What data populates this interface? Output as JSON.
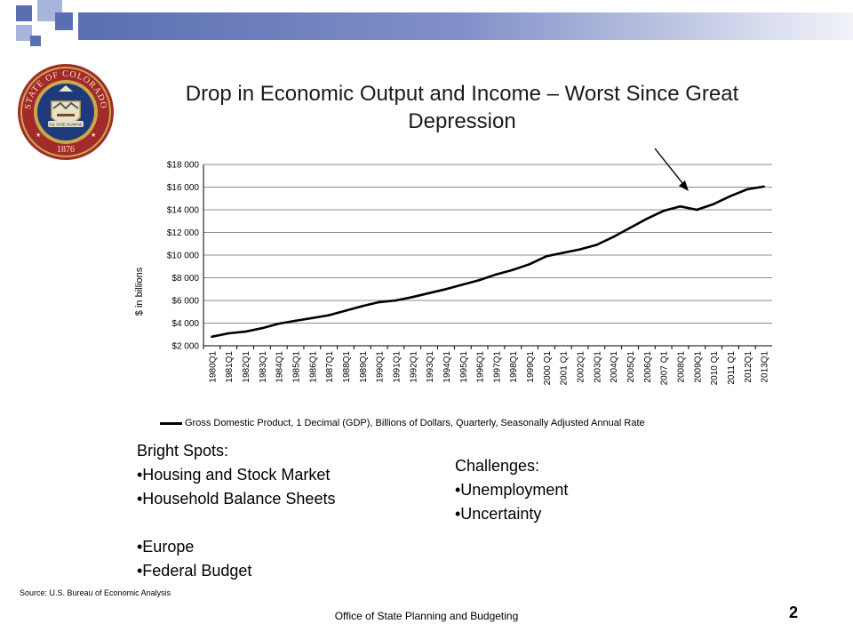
{
  "header": {
    "title": "Drop in Economic Output and Income – Worst Since Great Depression",
    "colors": {
      "primary": "#5a6fb0",
      "secondary": "#a9b4dd",
      "bar_gradient_end": "#f2f3f9"
    }
  },
  "seal": {
    "icon": "state-of-colorado-seal-icon",
    "top_text": "STATE OF COLORADO",
    "year": "1876",
    "motto": "NIL SINE NUMINE",
    "colors": {
      "outer": "#a32a2a",
      "ring": "#c9a84c",
      "center": "#1f3a7a"
    }
  },
  "chart_data": {
    "type": "line",
    "ylabel": "$ in billions",
    "xlabel": "",
    "ylim": [
      2000,
      18000
    ],
    "yticks": [
      2000,
      4000,
      6000,
      8000,
      10000,
      12000,
      14000,
      16000,
      18000
    ],
    "ytick_labels": [
      "$2 000",
      "$4 000",
      "$6 000",
      "$8 000",
      "$10 000",
      "$12 000",
      "$14 000",
      "$16 000",
      "$18 000"
    ],
    "categories": [
      "1980Q1",
      "1981Q1",
      "1982Q1",
      "1983Q1",
      "1984Q1",
      "1985Q1",
      "1986Q1",
      "1987Q1",
      "1988Q1",
      "1989Q1",
      "1990Q1",
      "1991Q1",
      "1992Q1",
      "1993Q1",
      "1994Q1",
      "1995Q1",
      "1996Q1",
      "1997Q1",
      "1998Q1",
      "1999Q1",
      "2000Q1",
      "2001Q1",
      "2002Q1",
      "2003Q1",
      "2004Q1",
      "2005Q1",
      "2006Q1",
      "2007Q1",
      "2008Q1",
      "2009Q1",
      "2010Q1",
      "2011Q1",
      "2012Q1",
      "2013Q1"
    ],
    "tick_labels": [
      "1980Q1",
      "1981Q1",
      "1982Q1",
      "1983Q1",
      "1984Q1",
      "1985Q1",
      "1986Q1",
      "1987Q1",
      "1988Q1",
      "1989Q1",
      "1990Q1",
      "1991Q1",
      "1992Q1",
      "1993Q1",
      "1994Q1",
      "1995Q1",
      "1996Q1",
      "1997Q1",
      "1998Q1",
      "1999Q1",
      "2000 Q1",
      "2001 Q1",
      "2002Q1",
      "2003Q1",
      "2004Q1",
      "2005Q1",
      "2006Q1",
      "2007 Q1",
      "2008Q1",
      "2009Q1",
      "2010 Q1",
      "2011 Q1",
      "2012Q1",
      "2013Q1"
    ],
    "series": [
      {
        "name": "Gross Domestic Product, 1 Decimal (GDP), Billions of Dollars, Quarterly, Seasonally Adjusted Annual Rate",
        "color": "#000000",
        "values": [
          2800,
          3100,
          3250,
          3550,
          3950,
          4200,
          4450,
          4700,
          5100,
          5500,
          5850,
          6000,
          6300,
          6650,
          7000,
          7400,
          7800,
          8300,
          8700,
          9200,
          9900,
          10200,
          10500,
          10900,
          11600,
          12400,
          13200,
          13900,
          14300,
          14000,
          14500,
          15200,
          15800,
          16050
        ]
      }
    ],
    "annotation": {
      "type": "arrow",
      "points_to": "2009Q1"
    },
    "grid": "horizontal",
    "legend_position": "bottom"
  },
  "bright_spots": {
    "heading": "Bright Spots:",
    "items": [
      "•Housing and Stock Market",
      "•Household Balance Sheets"
    ],
    "items2": [
      "•Europe",
      "•Federal Budget"
    ]
  },
  "challenges": {
    "heading": "Challenges:",
    "items": [
      "•Unemployment",
      "•Uncertainty"
    ]
  },
  "source": "Source: U.S. Bureau of Economic Analysis",
  "footer": {
    "office": "Office of State Planning and Budgeting",
    "page": "2"
  }
}
